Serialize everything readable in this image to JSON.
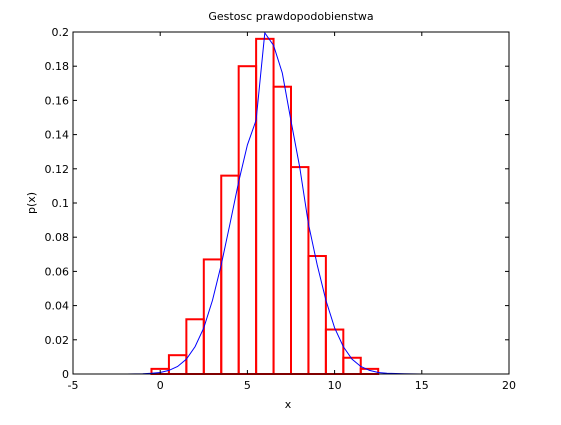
{
  "chart_data": {
    "type": "bar",
    "title": "Gestosc prawdopodobienstwa",
    "xlabel": "x",
    "ylabel": "p(x)",
    "xlim": [
      -5,
      20
    ],
    "ylim": [
      0,
      0.2
    ],
    "xticks": [
      "-5",
      "0",
      "5",
      "10",
      "15",
      "20"
    ],
    "yticks": [
      "0",
      "0.02",
      "0.04",
      "0.06",
      "0.08",
      "0.1",
      "0.12",
      "0.14",
      "0.16",
      "0.18",
      "0.2"
    ],
    "grid": false,
    "legend": "none",
    "histogram": {
      "color": "#ff0000",
      "bin_width": 1,
      "x": [
        0,
        1,
        2,
        3,
        4,
        5,
        6,
        7,
        8,
        9,
        10,
        11,
        12
      ],
      "values": [
        0.003,
        0.011,
        0.032,
        0.067,
        0.116,
        0.18,
        0.196,
        0.168,
        0.121,
        0.069,
        0.026,
        0.0095,
        0.003
      ]
    },
    "curve": {
      "type": "line",
      "color": "#0000ff",
      "x": [
        -5,
        -4,
        -3,
        -2,
        -1,
        -0.5,
        0,
        0.5,
        1,
        1.5,
        2,
        2.5,
        3,
        3.5,
        4,
        4.5,
        5,
        5.5,
        6,
        6.5,
        7,
        7.5,
        8,
        8.5,
        9,
        9.5,
        10,
        10.5,
        11,
        11.5,
        12,
        12.5,
        13,
        14,
        15,
        16,
        17,
        18,
        19,
        20
      ],
      "y": [
        0,
        0,
        0,
        0,
        0.0002,
        0.0004,
        0.0009,
        0.0021,
        0.0044,
        0.0087,
        0.016,
        0.027,
        0.0431,
        0.0638,
        0.0879,
        0.1125,
        0.134,
        0.1484,
        0.1995,
        0.1921,
        0.176,
        0.148,
        0.121,
        0.0879,
        0.0638,
        0.0431,
        0.027,
        0.016,
        0.0087,
        0.0044,
        0.0021,
        0.0009,
        0.0004,
        0.0001,
        0,
        0,
        0,
        0,
        0,
        0
      ]
    }
  }
}
